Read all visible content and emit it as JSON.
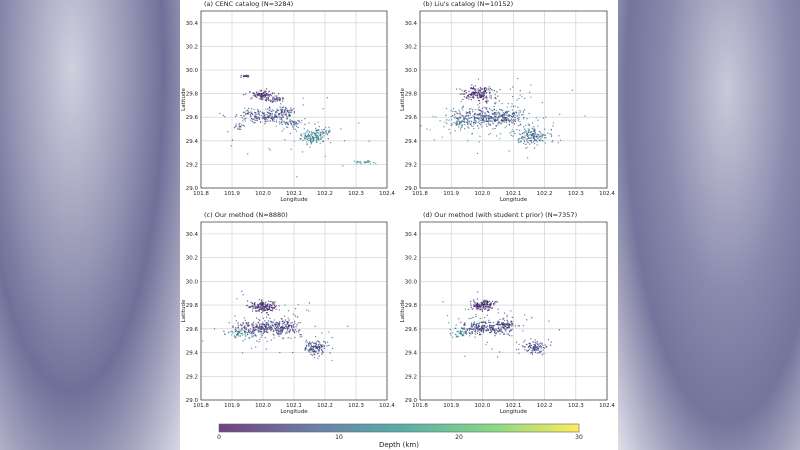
{
  "colorbar": {
    "label": "Depth (km)",
    "ticks": [
      "0",
      "10",
      "20",
      "30"
    ],
    "range": [
      0,
      30
    ],
    "colormap": "viridis"
  },
  "chart_data": [
    {
      "type": "scatter",
      "title": "(a) CENC catalog (N=3284)",
      "xlabel": "Longitude",
      "ylabel": "Latitude",
      "xlim": [
        101.8,
        102.4
      ],
      "ylim": [
        29.0,
        30.5
      ],
      "xticks": [
        "101.8",
        "101.9",
        "102.0",
        "102.1",
        "102.2",
        "102.3",
        "102.4"
      ],
      "yticks": [
        "29.0",
        "29.2",
        "29.4",
        "29.6",
        "29.8",
        "30.0",
        "30.2",
        "30.4"
      ],
      "grid": true,
      "clusters": [
        [
          101.945,
          29.95,
          0.008,
          0.005,
          20,
          3
        ],
        [
          102.0,
          29.79,
          0.02,
          0.018,
          110,
          3
        ],
        [
          102.035,
          29.75,
          0.015,
          0.01,
          40,
          4
        ],
        [
          102.0,
          29.61,
          0.04,
          0.03,
          190,
          6
        ],
        [
          102.07,
          29.65,
          0.015,
          0.02,
          60,
          8
        ],
        [
          102.09,
          29.55,
          0.025,
          0.03,
          60,
          7
        ],
        [
          102.16,
          29.43,
          0.022,
          0.03,
          120,
          12
        ],
        [
          102.19,
          29.48,
          0.015,
          0.02,
          30,
          10
        ],
        [
          102.33,
          29.22,
          0.02,
          0.005,
          25,
          14
        ],
        [
          101.92,
          29.53,
          0.012,
          0.02,
          20,
          8
        ],
        [
          102.1,
          29.5,
          0.12,
          0.15,
          40,
          10
        ]
      ]
    },
    {
      "type": "scatter",
      "title": "(b) Liu's catalog (N=10152)",
      "xlabel": "Longitude",
      "ylabel": "Latitude",
      "xlim": [
        101.8,
        102.4
      ],
      "ylim": [
        29.0,
        30.5
      ],
      "xticks": [
        "101.8",
        "101.9",
        "102.0",
        "102.1",
        "102.2",
        "102.3",
        "102.4"
      ],
      "yticks": [
        "29.0",
        "29.2",
        "29.4",
        "29.6",
        "29.8",
        "30.0",
        "30.2",
        "30.4"
      ],
      "grid": true,
      "clusters": [
        [
          101.99,
          29.8,
          0.025,
          0.03,
          180,
          3
        ],
        [
          102.0,
          29.6,
          0.05,
          0.035,
          260,
          7
        ],
        [
          102.08,
          29.6,
          0.025,
          0.035,
          100,
          6
        ],
        [
          102.16,
          29.44,
          0.03,
          0.035,
          150,
          10
        ],
        [
          101.93,
          29.56,
          0.02,
          0.03,
          60,
          12
        ],
        [
          102.05,
          29.6,
          0.12,
          0.14,
          140,
          12
        ]
      ]
    },
    {
      "type": "scatter",
      "title": "(c) Our method (N=8880)",
      "xlabel": "Longitude",
      "ylabel": "Latitude",
      "xlim": [
        101.8,
        102.4
      ],
      "ylim": [
        29.0,
        30.5
      ],
      "xticks": [
        "101.8",
        "101.9",
        "102.0",
        "102.1",
        "102.2",
        "102.3",
        "102.4"
      ],
      "yticks": [
        "29.0",
        "29.2",
        "29.4",
        "29.6",
        "29.8",
        "30.0",
        "30.2",
        "30.4"
      ],
      "grid": true,
      "clusters": [
        [
          102.0,
          29.79,
          0.022,
          0.025,
          170,
          3
        ],
        [
          102.0,
          29.61,
          0.045,
          0.03,
          260,
          5
        ],
        [
          102.07,
          29.62,
          0.02,
          0.03,
          90,
          5
        ],
        [
          102.17,
          29.44,
          0.02,
          0.03,
          130,
          6
        ],
        [
          101.93,
          29.56,
          0.02,
          0.02,
          60,
          12
        ],
        [
          102.05,
          29.6,
          0.1,
          0.12,
          80,
          8
        ]
      ]
    },
    {
      "type": "scatter",
      "title": "(d) Our method (with student t prior) (N=7357)",
      "xlabel": "Longitude",
      "ylabel": "Latitude",
      "xlim": [
        101.8,
        102.4
      ],
      "ylim": [
        29.0,
        30.5
      ],
      "xticks": [
        "101.8",
        "101.9",
        "102.0",
        "102.1",
        "102.2",
        "102.3",
        "102.4"
      ],
      "yticks": [
        "29.0",
        "29.2",
        "29.4",
        "29.6",
        "29.8",
        "30.0",
        "30.2",
        "30.4"
      ],
      "grid": true,
      "clusters": [
        [
          102.0,
          29.8,
          0.02,
          0.022,
          150,
          3
        ],
        [
          102.0,
          29.61,
          0.04,
          0.028,
          220,
          5
        ],
        [
          102.07,
          29.62,
          0.018,
          0.028,
          80,
          5
        ],
        [
          102.17,
          29.44,
          0.02,
          0.028,
          110,
          6
        ],
        [
          101.93,
          29.56,
          0.02,
          0.02,
          50,
          12
        ],
        [
          102.05,
          29.6,
          0.09,
          0.11,
          60,
          8
        ]
      ]
    }
  ]
}
